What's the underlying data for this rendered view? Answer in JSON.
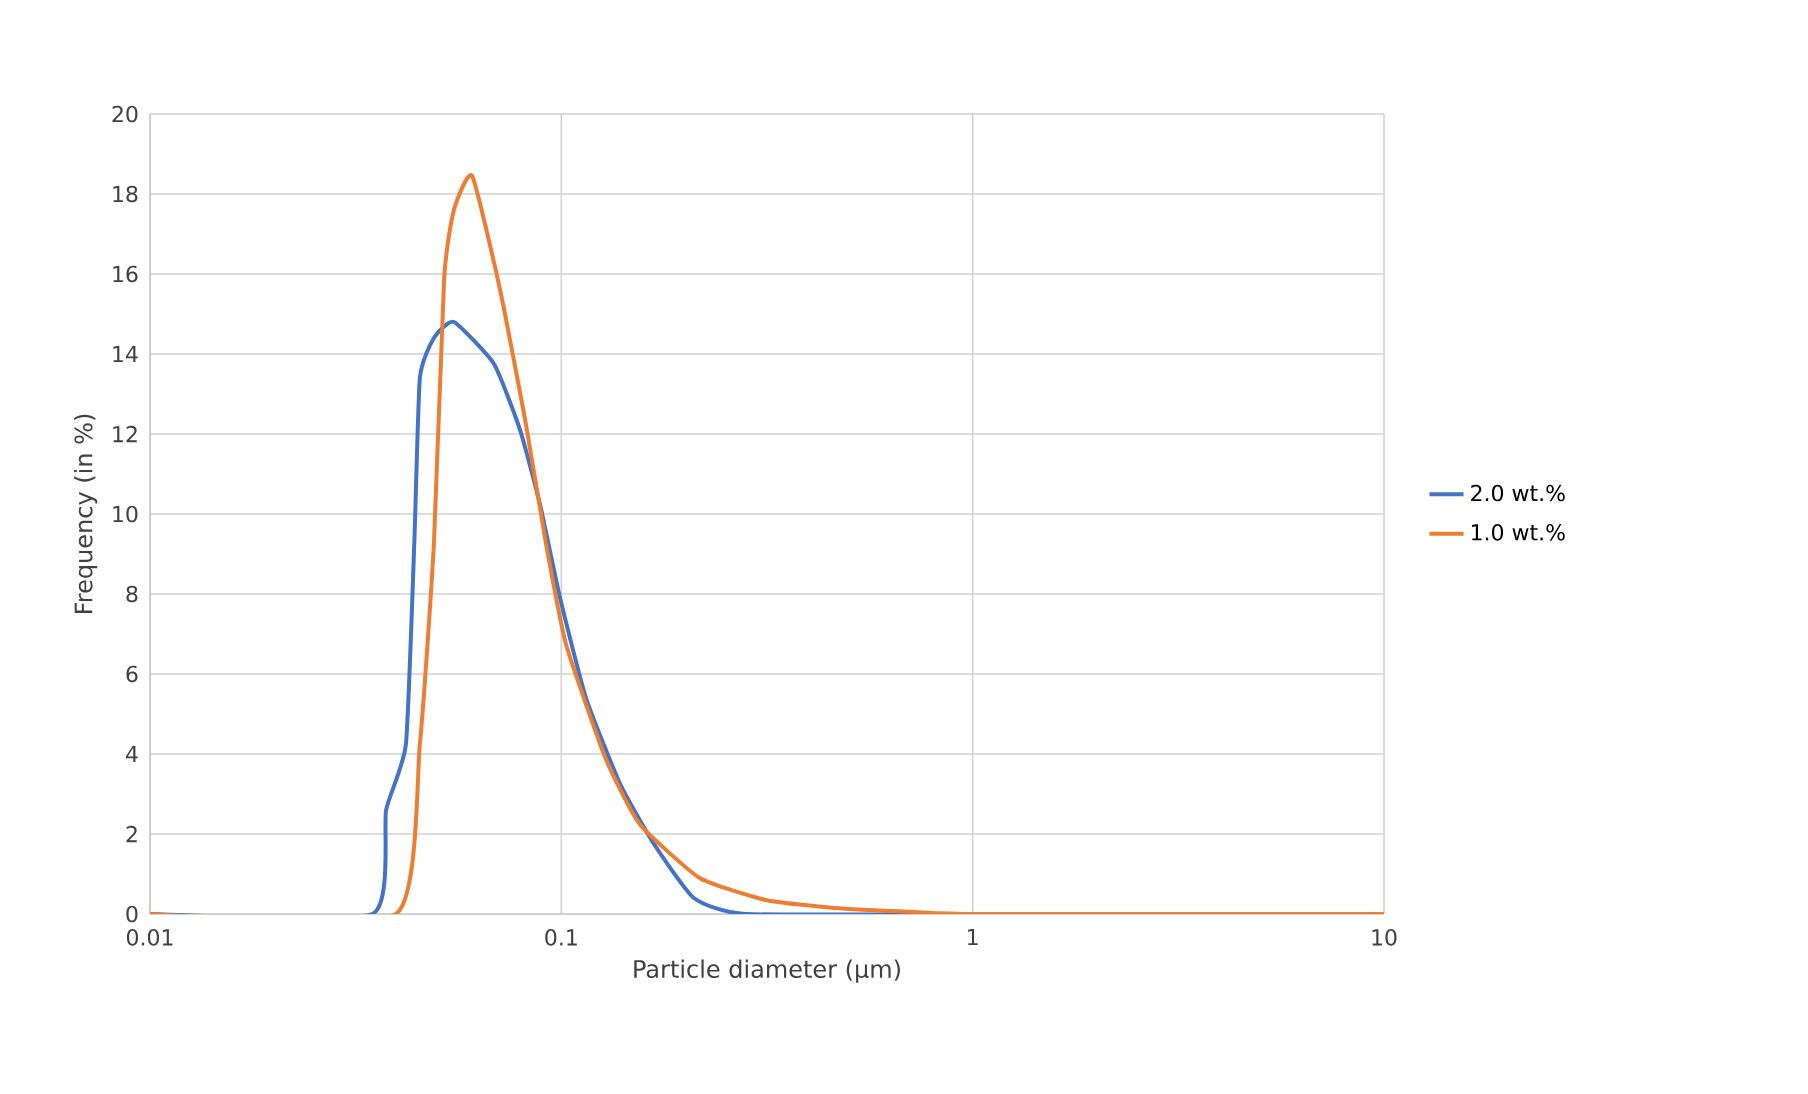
{
  "chart_data": {
    "type": "line",
    "xlabel": "Particle diameter (µm)",
    "ylabel": "Frequency (in %)",
    "log": "x",
    "xlim": [
      0.01,
      10
    ],
    "xticks": [
      0.01,
      0.1,
      1,
      10
    ],
    "ylim": [
      0,
      20
    ],
    "yticks": [
      0,
      2,
      4,
      6,
      8,
      10,
      12,
      14,
      16,
      18,
      20
    ],
    "grid": true,
    "legend": "right",
    "marker": "none",
    "series": [
      {
        "name": "2.0 wt.%",
        "color": "#4472c4",
        "x": [
          0.01,
          0.0347,
          0.0375,
          0.0419,
          0.0439,
          0.0453,
          0.049,
          0.0548,
          0.0686,
          0.0794,
          0.0887,
          0.0993,
          0.1148,
          0.139,
          0.168,
          0.21,
          0.281,
          1,
          10
        ],
        "values": [
          0,
          0,
          2.6,
          4.25,
          9.25,
          13.4,
          14.4,
          14.8,
          13.75,
          12.1,
          10.25,
          7.9,
          5.4,
          3.25,
          1.75,
          0.4,
          0,
          0,
          0
        ]
      },
      {
        "name": "1.0 wt.%",
        "color": "#ed7d31",
        "x": [
          0.01,
          0.0396,
          0.0453,
          0.049,
          0.0519,
          0.0548,
          0.0607,
          0.071,
          0.082,
          0.0918,
          0.1026,
          0.128,
          0.155,
          0.217,
          0.314,
          0.46,
          0.72,
          1.04,
          10
        ],
        "values": [
          0,
          0,
          4.25,
          9.25,
          15.9,
          17.6,
          18.45,
          15.6,
          12.25,
          9.25,
          6.75,
          3.9,
          2.25,
          0.9,
          0.35,
          0.15,
          0.05,
          0,
          0
        ]
      }
    ]
  }
}
